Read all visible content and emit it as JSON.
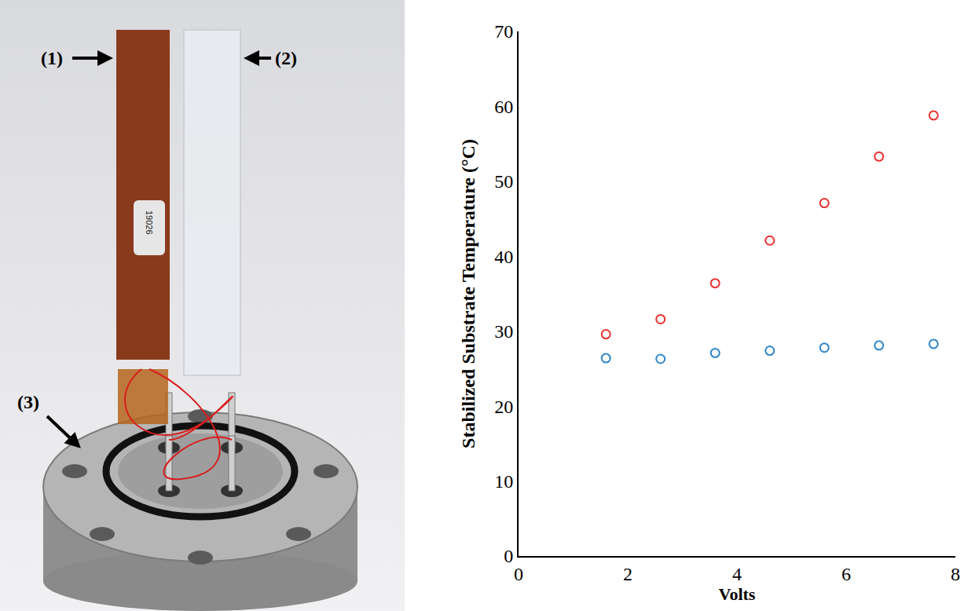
{
  "photo": {
    "labels": [
      "(1)",
      "(2)",
      "(3)"
    ],
    "sticker": "19026"
  },
  "chart_data": {
    "type": "scatter",
    "x_label": "Volts",
    "y_label": "Stabilized Substrate Temperature (°C)",
    "x": [
      1.6,
      2.6,
      3.6,
      4.6,
      5.6,
      6.6,
      7.6
    ],
    "series": [
      {
        "color": "#e8312f",
        "marker": "circle-open",
        "values": [
          29.6,
          31.6,
          36.4,
          42.1,
          47.1,
          53.3,
          58.8
        ]
      },
      {
        "color": "#2e86c9",
        "marker": "circle-open",
        "values": [
          26.4,
          26.3,
          27.1,
          27.4,
          27.8,
          28.1,
          28.3
        ]
      }
    ],
    "xlim": [
      0,
      8
    ],
    "xticks": [
      0,
      2,
      4,
      6,
      8
    ],
    "ylim": [
      0,
      70
    ],
    "yticks": [
      0,
      10,
      20,
      30,
      40,
      50,
      60,
      70
    ],
    "grid": false
  }
}
